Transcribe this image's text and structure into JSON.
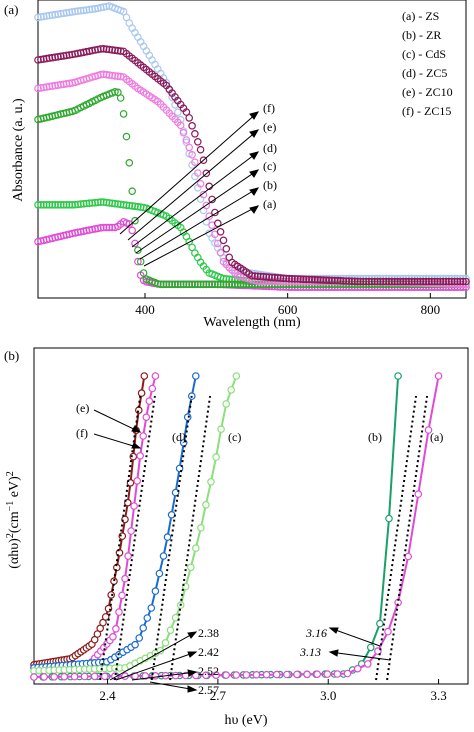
{
  "chart_data": [
    {
      "panel_label": "(a)",
      "type": "line",
      "xlabel": "Wavelength (nm)",
      "ylabel": "Absorbance (a. u.)",
      "xlim": [
        250,
        850
      ],
      "ylim": [
        0,
        1
      ],
      "xticks": [
        400,
        600,
        800
      ],
      "yticks_shown": false,
      "grid": false,
      "legend_position": "top-right",
      "legend": [
        "(a) - ZS",
        "(b) - ZR",
        "(c) - CdS",
        "(d) - ZC5",
        "(e) - ZC10",
        "(f) - ZC15"
      ],
      "annotations": [
        "(f)",
        "(e)",
        "(d)",
        "(c)",
        "(b)",
        "(a)"
      ],
      "series": [
        {
          "name": "(a) - ZS",
          "color": "#e04ad6",
          "x": [
            250,
            300,
            340,
            360,
            370,
            380,
            385,
            390,
            395,
            400,
            420,
            500,
            600,
            700,
            800,
            850
          ],
          "y": [
            0.17,
            0.2,
            0.22,
            0.22,
            0.24,
            0.23,
            0.18,
            0.1,
            0.04,
            0.03,
            0.02,
            0.02,
            0.01,
            0.01,
            0.01,
            0.01
          ]
        },
        {
          "name": "(b) - ZR",
          "color": "#a8c8f0",
          "x": [
            250,
            300,
            330,
            350,
            370,
            380,
            400,
            430,
            450,
            470,
            490,
            520,
            600,
            700,
            850
          ],
          "y": [
            0.96,
            0.98,
            0.99,
            1.0,
            0.98,
            0.93,
            0.85,
            0.73,
            0.6,
            0.4,
            0.2,
            0.07,
            0.04,
            0.04,
            0.04
          ]
        },
        {
          "name": "(c) - CdS",
          "color": "#2ec84a",
          "x": [
            250,
            300,
            340,
            370,
            400,
            430,
            450,
            460,
            470,
            480,
            490,
            510,
            550,
            700,
            850
          ],
          "y": [
            0.3,
            0.3,
            0.31,
            0.3,
            0.29,
            0.26,
            0.22,
            0.18,
            0.13,
            0.09,
            0.06,
            0.04,
            0.03,
            0.03,
            0.03
          ]
        },
        {
          "name": "(d) - ZC5",
          "color": "#2ea82e",
          "x": [
            250,
            300,
            340,
            360,
            365,
            370,
            375,
            380,
            385,
            390,
            400,
            420,
            600,
            850
          ],
          "y": [
            0.6,
            0.63,
            0.68,
            0.7,
            0.69,
            0.62,
            0.52,
            0.4,
            0.27,
            0.14,
            0.04,
            0.02,
            0.02,
            0.02
          ]
        },
        {
          "name": "(e) - ZC10",
          "color": "#f07ae0",
          "x": [
            250,
            300,
            340,
            370,
            390,
            420,
            450,
            470,
            490,
            510,
            530,
            560,
            700,
            850
          ],
          "y": [
            0.71,
            0.73,
            0.76,
            0.75,
            0.71,
            0.66,
            0.58,
            0.45,
            0.26,
            0.1,
            0.05,
            0.03,
            0.03,
            0.02
          ]
        },
        {
          "name": "(f) - ZC15",
          "color": "#8a1a5a",
          "x": [
            250,
            300,
            340,
            370,
            400,
            430,
            460,
            480,
            500,
            520,
            550,
            600,
            700,
            850
          ],
          "y": [
            0.81,
            0.83,
            0.85,
            0.84,
            0.78,
            0.72,
            0.62,
            0.48,
            0.25,
            0.1,
            0.05,
            0.04,
            0.03,
            0.03
          ]
        }
      ]
    },
    {
      "panel_label": "(b)",
      "type": "scatter",
      "xlabel": "hυ (eV)",
      "ylabel": "(αhυ)²(cm⁻¹ eV)²",
      "ylabel_parts": {
        "a": "(αhυ)",
        "b": "2",
        "c": "(cm",
        "d": "−1",
        "e": " eV)",
        "f": "2"
      },
      "xlim": [
        2.2,
        3.38
      ],
      "ylim": [
        0,
        1
      ],
      "xticks": [
        "2.4",
        "2.7",
        "3.0",
        "3.3"
      ],
      "yticks_shown": false,
      "grid": false,
      "annotations": [
        "(e)",
        "(f)",
        "(d)",
        "(c)",
        "(b)",
        "(a)",
        "2.38",
        "2.42",
        "2.52",
        "2.57",
        "3.16",
        "3.13"
      ],
      "band_gaps_eV": {
        "2.38": 2.38,
        "2.42": 2.42,
        "2.52": 2.52,
        "2.57": 2.57,
        "3.16": 3.16,
        "3.13": 3.13
      },
      "series": [
        {
          "name": "(e)",
          "color": "#8b1a1a",
          "x": [
            2.2,
            2.3,
            2.36,
            2.4,
            2.43,
            2.46,
            2.48,
            2.5
          ],
          "y": [
            0.05,
            0.07,
            0.12,
            0.22,
            0.4,
            0.62,
            0.85,
            1.0
          ]
        },
        {
          "name": "(f)",
          "color": "#e04ad6",
          "x": [
            2.2,
            2.35,
            2.42,
            2.45,
            2.47,
            2.49,
            2.51,
            2.53
          ],
          "y": [
            0.04,
            0.05,
            0.15,
            0.35,
            0.55,
            0.75,
            0.9,
            1.0
          ]
        },
        {
          "name": "(d)",
          "color": "#1a6ad0",
          "x": [
            2.2,
            2.4,
            2.48,
            2.52,
            2.56,
            2.59,
            2.62,
            2.64
          ],
          "y": [
            0.04,
            0.06,
            0.12,
            0.24,
            0.45,
            0.65,
            0.88,
            1.0
          ]
        },
        {
          "name": "(c)",
          "color": "#8ae07a",
          "x": [
            2.2,
            2.45,
            2.55,
            2.6,
            2.65,
            2.69,
            2.72,
            2.75
          ],
          "y": [
            0.03,
            0.04,
            0.1,
            0.25,
            0.48,
            0.7,
            0.9,
            1.0
          ]
        },
        {
          "name": "(b)",
          "color": "#1aa06a",
          "x": [
            2.2,
            3.05,
            3.1,
            3.14,
            3.16,
            3.17,
            3.18,
            3.19
          ],
          "y": [
            0.01,
            0.02,
            0.06,
            0.18,
            0.4,
            0.65,
            0.88,
            1.0
          ]
        },
        {
          "name": "(a)",
          "color": "#e04ad6",
          "x": [
            2.2,
            3.05,
            3.12,
            3.18,
            3.22,
            3.25,
            3.28,
            3.3
          ],
          "y": [
            0.01,
            0.02,
            0.06,
            0.2,
            0.42,
            0.65,
            0.88,
            1.0
          ]
        }
      ]
    }
  ]
}
